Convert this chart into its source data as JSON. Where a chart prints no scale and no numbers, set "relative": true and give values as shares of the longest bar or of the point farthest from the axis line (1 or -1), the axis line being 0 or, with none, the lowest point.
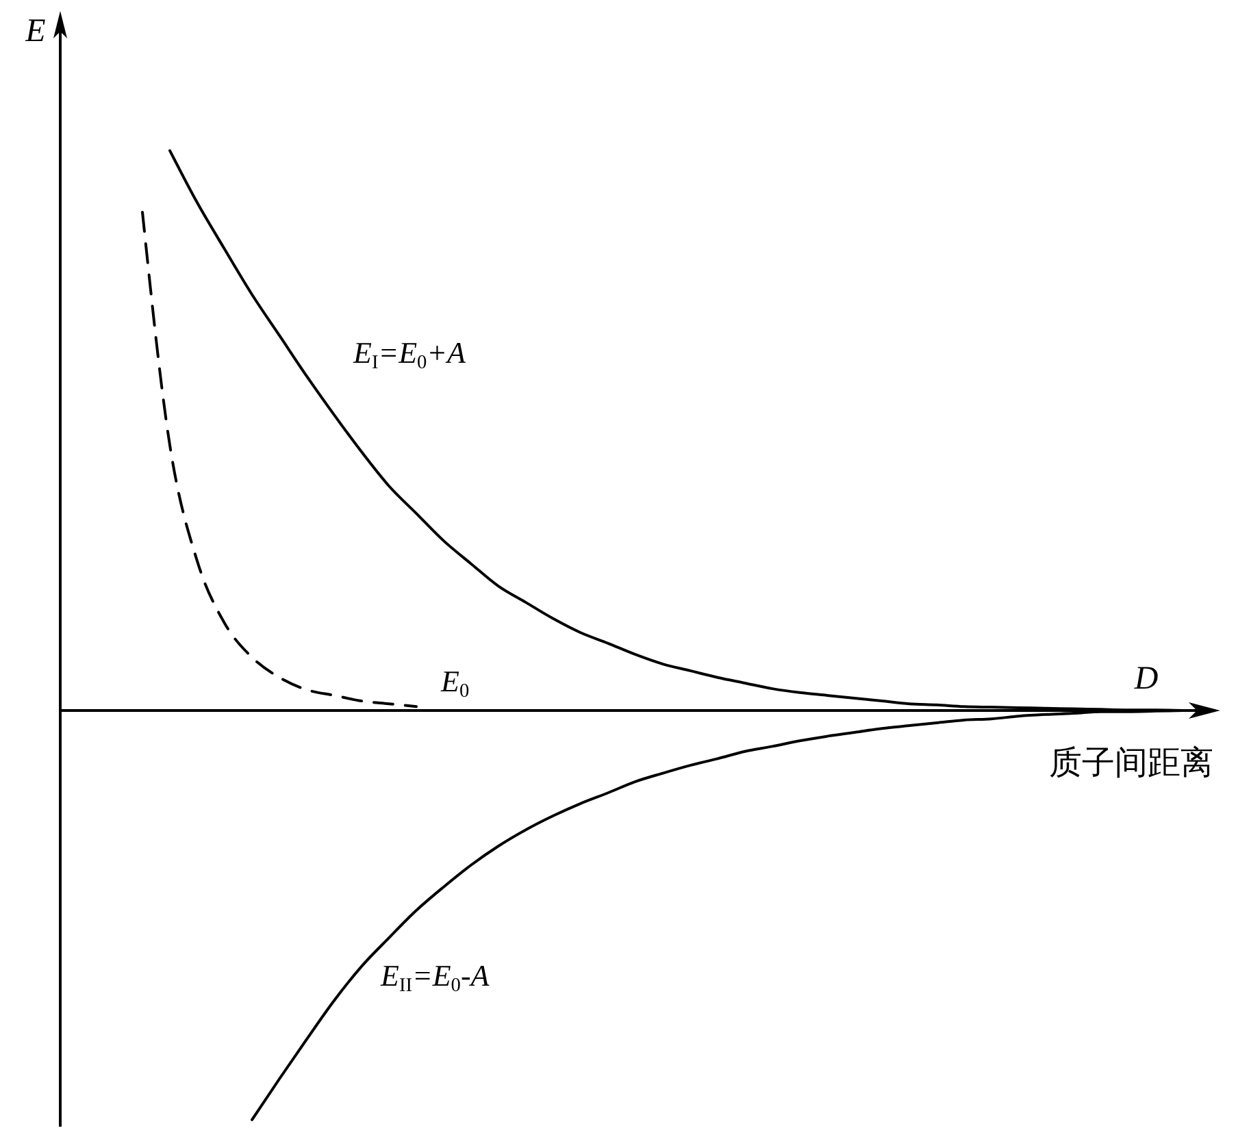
{
  "chart_data": {
    "type": "line",
    "relative": true,
    "xlabel": "D",
    "ylabel": "E",
    "annotations": [
      "E$_{0}$",
      "质子间距离"
    ],
    "categories": [
      null,
      null,
      null,
      null,
      null,
      null,
      null,
      null,
      null,
      null,
      null,
      null,
      null,
      null,
      null,
      null,
      null,
      null,
      null,
      null,
      null,
      null,
      null,
      null,
      null,
      null,
      null,
      null,
      null,
      null,
      null,
      null,
      null,
      null,
      null,
      null,
      null,
      null,
      null,
      null,
      null,
      null
    ],
    "series": [
      {
        "name": "E$_{I}$=E$_{0}$+A",
        "color": "#000000",
        "line_style": "solid",
        "values": [
          null,
          null,
          null,
          null,
          1.0,
          0.907,
          0.824,
          0.743,
          0.67,
          0.597,
          0.528,
          0.462,
          0.401,
          0.352,
          0.303,
          0.262,
          0.222,
          0.193,
          0.164,
          0.139,
          0.12,
          0.1,
          0.083,
          0.071,
          0.059,
          0.049,
          0.039,
          0.032,
          0.027,
          0.022,
          0.017,
          0.012,
          0.01,
          0.007,
          0.006,
          0.005,
          0.004,
          0.003,
          0.002,
          0.001,
          0.001,
          0
        ]
      },
      {
        "color": "#000000",
        "line_style": "dashed",
        "values": [
          null,
          null,
          null,
          0.89,
          0.474,
          0.267,
          0.156,
          0.095,
          0.059,
          0.037,
          0.027,
          0.017,
          0.012,
          0.007,
          null,
          null,
          null,
          null,
          null,
          null,
          null,
          null,
          null,
          null,
          null,
          null,
          null,
          null,
          null,
          null,
          null,
          null,
          null,
          null,
          null,
          null,
          null,
          null,
          null,
          null,
          null,
          null
        ]
      },
      {
        "name": "E$_{II}$=E$_{0}$-A",
        "color": "#000000",
        "line_style": "solid",
        "values": [
          null,
          null,
          null,
          null,
          null,
          null,
          null,
          -0.731,
          -0.658,
          -0.587,
          -0.518,
          -0.457,
          -0.406,
          -0.357,
          -0.315,
          -0.276,
          -0.242,
          -0.213,
          -0.188,
          -0.166,
          -0.147,
          -0.127,
          -0.112,
          -0.098,
          -0.086,
          -0.073,
          -0.064,
          -0.054,
          -0.046,
          -0.039,
          -0.032,
          -0.027,
          -0.022,
          -0.017,
          -0.015,
          -0.01,
          -0.007,
          -0.005,
          -0.002,
          -0.002,
          -0.001,
          0
        ]
      }
    ]
  }
}
